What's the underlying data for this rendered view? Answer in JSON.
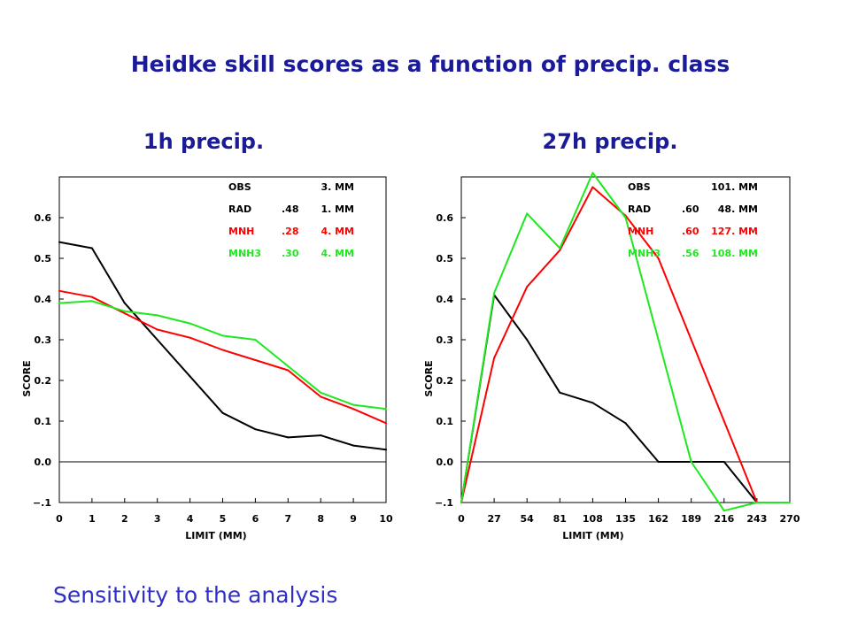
{
  "slide": {
    "title": "Heidke skill scores as a function of precip. class",
    "footer": "Sensitivity to the analysis",
    "colors": {
      "title": "#1b1b9a",
      "footer": "#2f2fc4",
      "background": "#ffffff"
    }
  },
  "chart_data": [
    {
      "type": "line",
      "title": "1h precip.",
      "xlabel": "LIMIT (MM)",
      "ylabel": "SCORE",
      "xlim": [
        0,
        10
      ],
      "ylim": [
        -0.1,
        0.7
      ],
      "x": [
        0,
        1,
        2,
        3,
        4,
        5,
        6,
        7,
        8,
        9,
        10
      ],
      "x_tick_labels": [
        "0",
        "1",
        "2",
        "3",
        "4",
        "5",
        "6",
        "7",
        "8",
        "9",
        "10"
      ],
      "y_ticks": [
        -0.1,
        0.0,
        0.1,
        0.2,
        0.3,
        0.4,
        0.5,
        0.6
      ],
      "y_tick_labels": [
        "−.1",
        "0.0",
        "0.1",
        "0.2",
        "0.3",
        "0.4",
        "0.5",
        "0.6"
      ],
      "reference_line_y": 0,
      "grid": false,
      "legend_position": "top-right",
      "obs_entry": {
        "label": "OBS",
        "amount": "3. MM",
        "color": "#000000"
      },
      "series": [
        {
          "name": "RAD",
          "score": ".48",
          "amount": "1. MM",
          "color": "#000000",
          "values": [
            0.54,
            0.525,
            0.39,
            0.3,
            0.21,
            0.12,
            0.08,
            0.06,
            0.065,
            0.04,
            0.03
          ]
        },
        {
          "name": "MNH",
          "score": ".28",
          "amount": "4. MM",
          "color": "#ff0000",
          "values": [
            0.42,
            0.405,
            0.365,
            0.325,
            0.305,
            0.275,
            0.25,
            0.225,
            0.16,
            0.13,
            0.095
          ]
        },
        {
          "name": "MNH3",
          "score": ".30",
          "amount": "4. MM",
          "color": "#1ee81e",
          "values": [
            0.39,
            0.395,
            0.37,
            0.36,
            0.34,
            0.31,
            0.3,
            0.235,
            0.17,
            0.14,
            0.13
          ]
        }
      ]
    },
    {
      "type": "line",
      "title": "27h precip.",
      "xlabel": "LIMIT (MM)",
      "ylabel": "SCORE",
      "xlim": [
        0,
        270
      ],
      "ylim": [
        -0.1,
        0.7
      ],
      "x": [
        0,
        27,
        54,
        81,
        108,
        135,
        162,
        189,
        216,
        243,
        270
      ],
      "x_tick_labels": [
        "0",
        "27",
        "54",
        "81",
        "108",
        "135",
        "162",
        "189",
        "216",
        "243",
        "270"
      ],
      "y_ticks": [
        -0.1,
        0.0,
        0.1,
        0.2,
        0.3,
        0.4,
        0.5,
        0.6
      ],
      "y_tick_labels": [
        "−.1",
        "0.0",
        "0.1",
        "0.2",
        "0.3",
        "0.4",
        "0.5",
        "0.6"
      ],
      "reference_line_y": 0,
      "grid": false,
      "legend_position": "top-right",
      "obs_entry": {
        "label": "OBS",
        "amount": "101. MM",
        "color": "#000000"
      },
      "series": [
        {
          "name": "RAD",
          "score": ".60",
          "amount": "48. MM",
          "color": "#000000",
          "values": [
            -0.1,
            0.41,
            0.3,
            0.17,
            0.145,
            0.095,
            0.0,
            0.0,
            0.0,
            -0.1,
            null
          ]
        },
        {
          "name": "MNH",
          "score": ".60",
          "amount": "127. MM",
          "color": "#ff0000",
          "values": [
            -0.1,
            0.255,
            0.43,
            0.52,
            0.675,
            0.605,
            0.5,
            0.3,
            0.1,
            -0.1,
            null
          ]
        },
        {
          "name": "MNH3",
          "score": ".56",
          "amount": "108. MM",
          "color": "#1ee81e",
          "values": [
            -0.1,
            0.415,
            0.61,
            0.525,
            0.71,
            0.6,
            0.3,
            0.0,
            -0.12,
            -0.1,
            -0.1
          ]
        }
      ]
    }
  ]
}
